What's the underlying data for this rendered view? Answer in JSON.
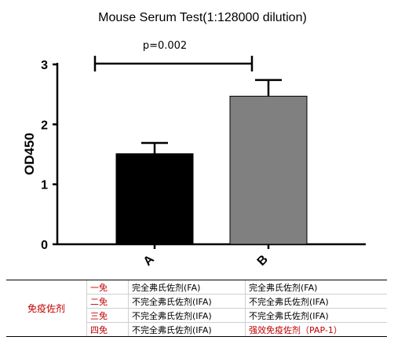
{
  "chart_data": {
    "type": "bar",
    "title": "Mouse Serum Test(1:128000 dilution)",
    "ylabel": "OD450",
    "xlabel": "",
    "categories": [
      "A",
      "B"
    ],
    "values": [
      1.51,
      2.47
    ],
    "error": [
      0.18,
      0.27
    ],
    "bar_colors": [
      "#000000",
      "#808080"
    ],
    "ylim": [
      0,
      3
    ],
    "yticks": [
      0,
      1,
      2,
      3
    ],
    "grid": false,
    "annotation": {
      "text": "p=0.002",
      "from": "A",
      "to": "B"
    }
  },
  "table": {
    "group_label": "免疫佐剂",
    "rows": [
      {
        "stage": "一免",
        "a": "完全弗氏佐剂(FA)",
        "b": "完全弗氏佐剂(FA)",
        "b_red": false
      },
      {
        "stage": "二免",
        "a": "不完全弗氏佐剂(IFA)",
        "b": "不完全弗氏佐剂(IFA)",
        "b_red": false
      },
      {
        "stage": "三免",
        "a": "不完全弗氏佐剂(IFA)",
        "b": "不完全弗氏佐剂(IFA)",
        "b_red": false
      },
      {
        "stage": "四免",
        "a": "不完全弗氏佐剂(IFA)",
        "b": "强效免疫佐剂（PAP-1）",
        "b_red": true
      }
    ]
  }
}
